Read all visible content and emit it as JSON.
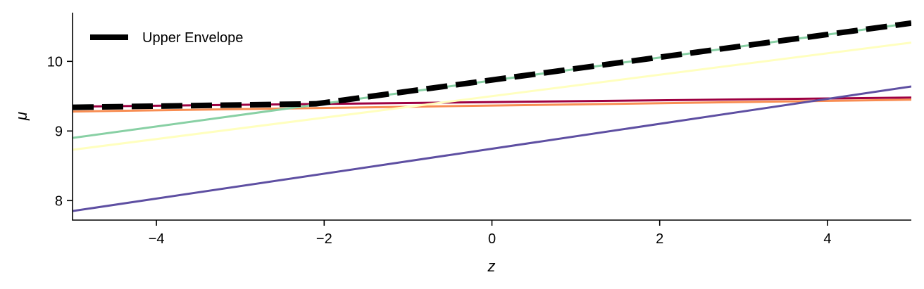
{
  "chart_data": {
    "type": "line",
    "title": "",
    "xlabel": "z",
    "ylabel": "μ",
    "xlim": [
      -5,
      5
    ],
    "ylim": [
      7.72,
      10.7
    ],
    "x_ticks": [
      -4,
      -2,
      0,
      2,
      4
    ],
    "x_tick_labels": [
      "−4",
      "−2",
      "0",
      "2",
      "4"
    ],
    "y_ticks": [
      8,
      9,
      10
    ],
    "y_tick_labels": [
      "8",
      "9",
      "10"
    ],
    "grid": false,
    "legend": {
      "position": "top-left",
      "entries": [
        "Upper Envelope"
      ]
    },
    "series": [
      {
        "color": "#9e0142",
        "style": "solid",
        "x": [
          -5,
          5
        ],
        "y": [
          9.35,
          9.48
        ]
      },
      {
        "color": "#f88d52",
        "style": "solid",
        "x": [
          -5,
          5
        ],
        "y": [
          9.28,
          9.45
        ]
      },
      {
        "color": "#ffffbf",
        "style": "solid",
        "x": [
          -5,
          5
        ],
        "y": [
          8.73,
          10.27
        ]
      },
      {
        "color": "#88d0a4",
        "style": "solid",
        "x": [
          -5,
          5
        ],
        "y": [
          8.9,
          10.55
        ]
      },
      {
        "color": "#5e4fa2",
        "style": "solid",
        "x": [
          -5,
          5
        ],
        "y": [
          7.85,
          9.64
        ]
      },
      {
        "name": "Upper Envelope",
        "color": "#000000",
        "style": "dashed",
        "x": [
          -5,
          -2.1,
          5
        ],
        "y": [
          9.34,
          9.39,
          10.55
        ]
      }
    ]
  }
}
